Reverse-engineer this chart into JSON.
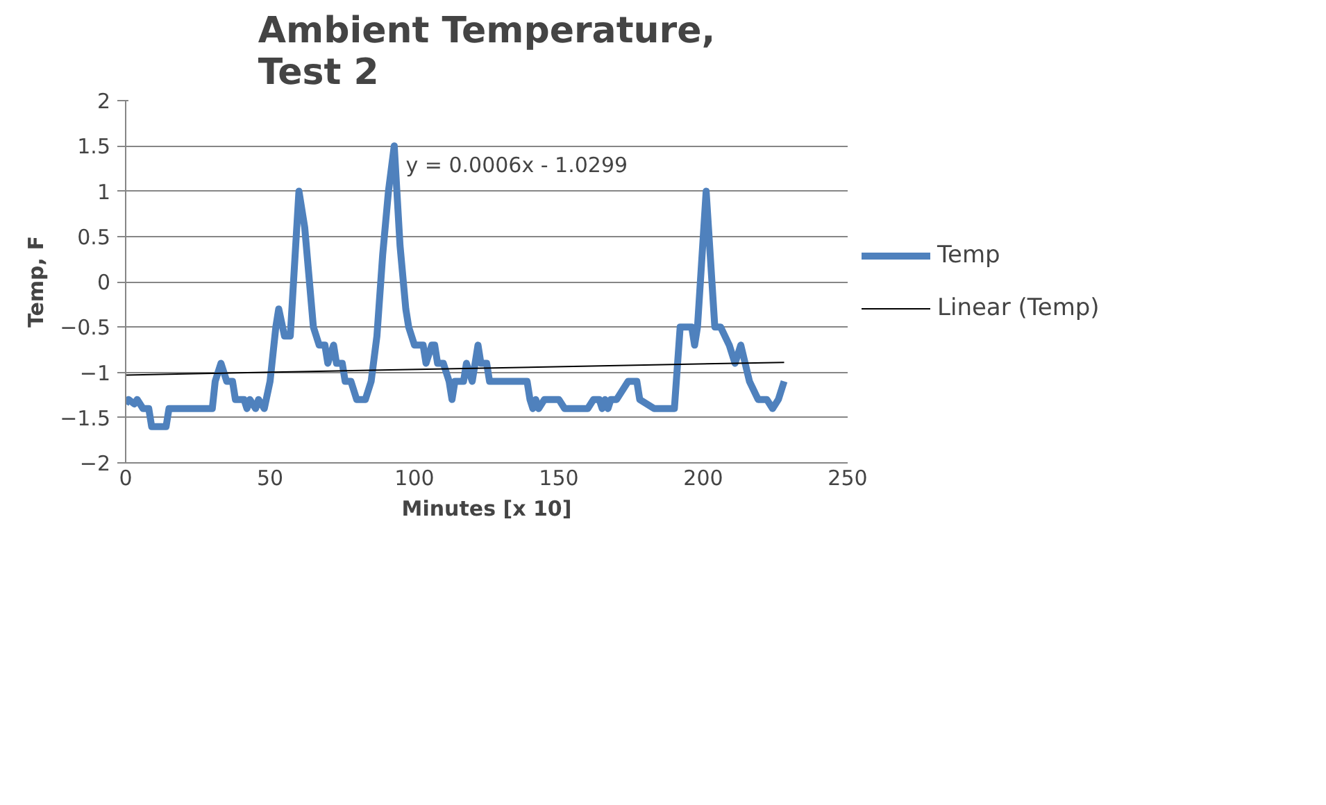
{
  "chart_data": {
    "type": "line",
    "title": "Ambient Temperature,\nTest 2",
    "xlabel": "Minutes [x 10]",
    "ylabel": "Temp, F",
    "xlim": [
      0,
      250
    ],
    "xticks": [
      0,
      50,
      100,
      150,
      200,
      250
    ],
    "ylim": [
      -2,
      2
    ],
    "yticks": [
      -2,
      -1.5,
      -1,
      -0.5,
      0,
      0.5,
      1,
      1.5,
      2
    ],
    "grid": "y",
    "legend": "right",
    "marker": "none",
    "annotations": [
      "y = 0.0006x - 1.0299"
    ],
    "series": [
      {
        "name": "Temp",
        "color": "#4f81bd",
        "line_style": "solid",
        "x": [
          0,
          1,
          3,
          4,
          6,
          8,
          9,
          14,
          15,
          30,
          31,
          33,
          35,
          37,
          38,
          41,
          42,
          43,
          45,
          46,
          48,
          50,
          52,
          53,
          55,
          57,
          60,
          62,
          65,
          67,
          69,
          70,
          72,
          73,
          75,
          76,
          78,
          80,
          83,
          85,
          87,
          89,
          91,
          93,
          95,
          97,
          98,
          100,
          103,
          104,
          106,
          107,
          108,
          110,
          112,
          113,
          114,
          117,
          118,
          120,
          122,
          123,
          125,
          126,
          139,
          140,
          141,
          142,
          143,
          145,
          150,
          152,
          160,
          162,
          164,
          165,
          166,
          167,
          168,
          170,
          174,
          177,
          178,
          183,
          190,
          192,
          196,
          197,
          198,
          201,
          204,
          206,
          209,
          211,
          213,
          216,
          219,
          222,
          224,
          226,
          228
        ],
        "values": [
          -1.35,
          -1.3,
          -1.35,
          -1.3,
          -1.4,
          -1.4,
          -1.6,
          -1.6,
          -1.4,
          -1.4,
          -1.1,
          -0.9,
          -1.1,
          -1.1,
          -1.3,
          -1.3,
          -1.4,
          -1.3,
          -1.4,
          -1.3,
          -1.4,
          -1.1,
          -0.5,
          -0.3,
          -0.6,
          -0.6,
          1.0,
          0.6,
          -0.5,
          -0.7,
          -0.7,
          -0.9,
          -0.7,
          -0.9,
          -0.9,
          -1.1,
          -1.1,
          -1.3,
          -1.3,
          -1.1,
          -0.6,
          0.3,
          1.0,
          1.5,
          0.4,
          -0.3,
          -0.5,
          -0.7,
          -0.7,
          -0.9,
          -0.7,
          -0.7,
          -0.9,
          -0.9,
          -1.1,
          -1.3,
          -1.1,
          -1.1,
          -0.9,
          -1.1,
          -0.7,
          -0.9,
          -0.9,
          -1.1,
          -1.1,
          -1.3,
          -1.4,
          -1.3,
          -1.4,
          -1.3,
          -1.3,
          -1.4,
          -1.4,
          -1.3,
          -1.3,
          -1.4,
          -1.3,
          -1.4,
          -1.3,
          -1.3,
          -1.1,
          -1.1,
          -1.3,
          -1.4,
          -1.4,
          -0.5,
          -0.5,
          -0.7,
          -0.5,
          1.0,
          -0.5,
          -0.5,
          -0.7,
          -0.9,
          -0.7,
          -1.1,
          -1.3,
          -1.3,
          -1.4,
          -1.3,
          -1.1
        ]
      },
      {
        "name": "Linear (Temp)",
        "color": "#000000",
        "line_style": "solid",
        "x": [
          0,
          228
        ],
        "values": [
          -1.03,
          -0.89
        ]
      }
    ]
  }
}
